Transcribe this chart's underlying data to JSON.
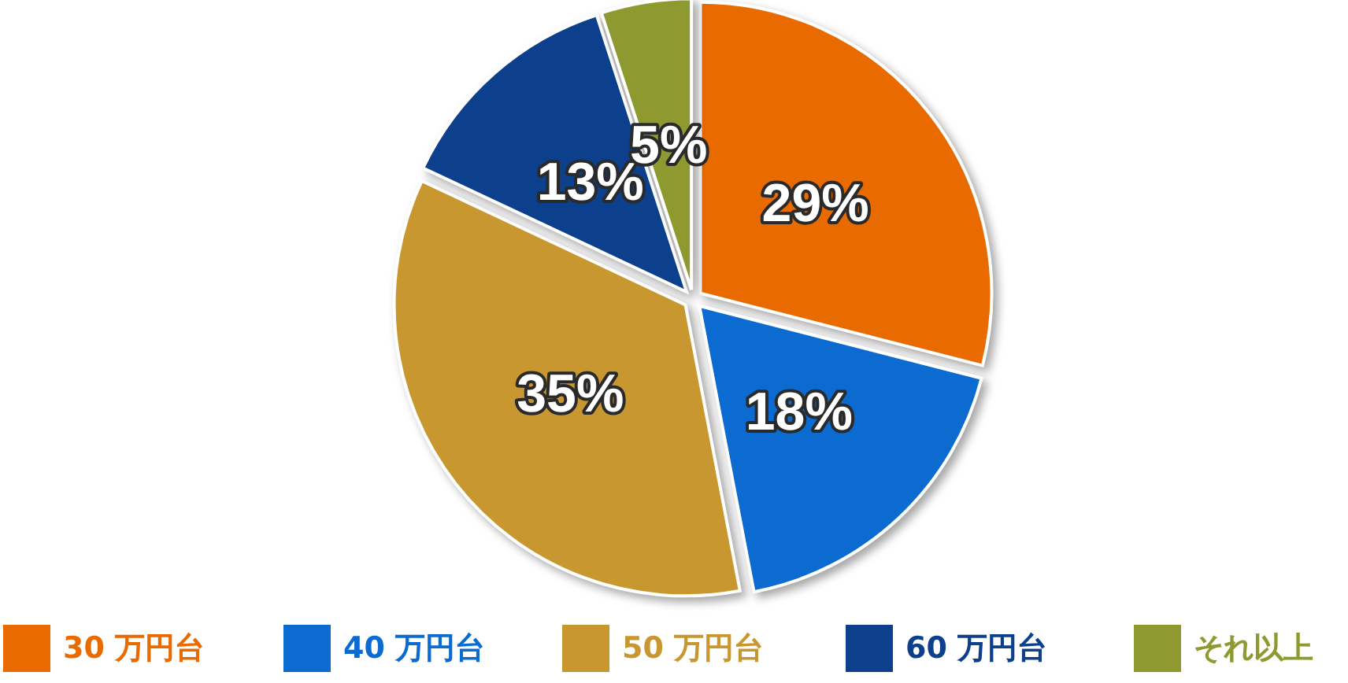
{
  "chart_data": {
    "type": "pie",
    "categories": [
      "30 万円台",
      "40 万円台",
      "50 万円台",
      "60 万円台",
      "それ以上"
    ],
    "values": [
      29,
      18,
      35,
      13,
      5
    ],
    "value_labels": [
      "29%",
      "18%",
      "35%",
      "13%",
      "5%"
    ],
    "colors": [
      "#e96b00",
      "#0b6bd1",
      "#c9972f",
      "#0c3f8c",
      "#8e9a2f"
    ],
    "legend": "bottom"
  }
}
